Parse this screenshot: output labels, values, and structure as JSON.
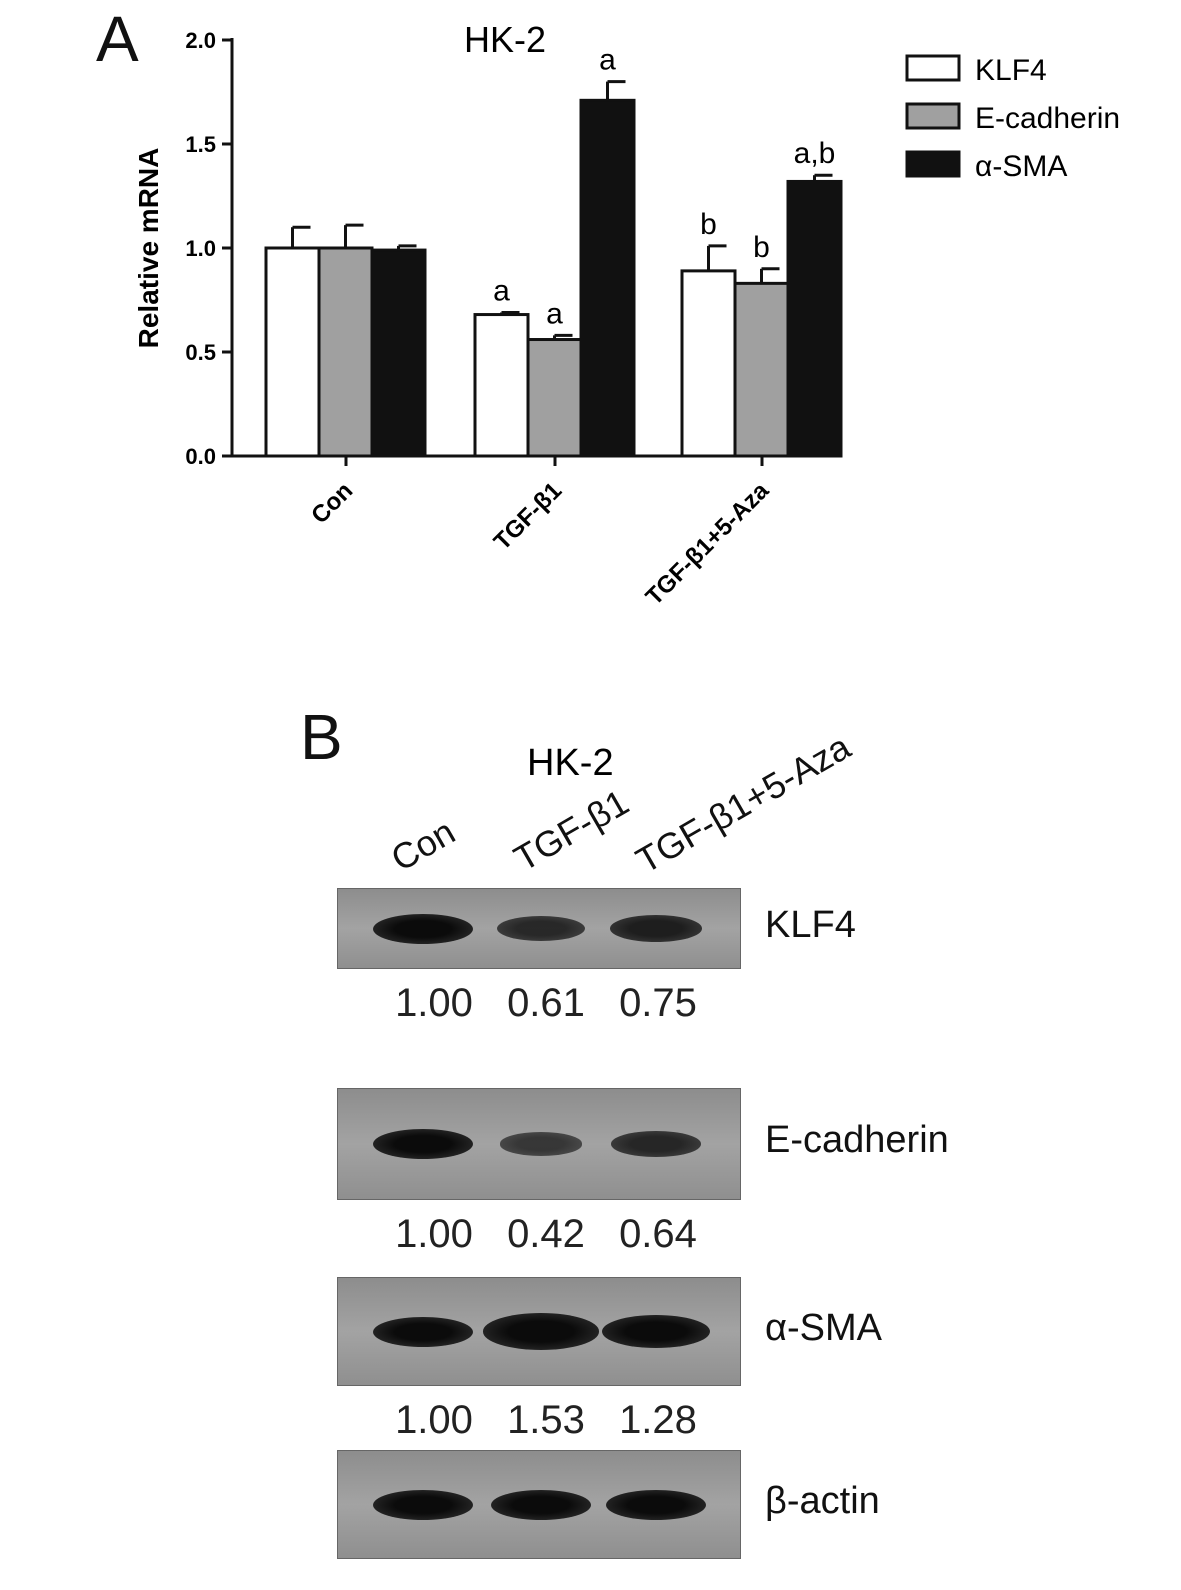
{
  "panel_a": {
    "letter": "A"
  },
  "panel_b": {
    "letter": "B",
    "title": "HK-2",
    "lanes": [
      "Con",
      "TGF-β1",
      "TGF-β1+5-Aza"
    ],
    "blots": [
      {
        "label": "KLF4",
        "values": [
          "1.00",
          "0.61",
          "0.75"
        ],
        "band_intensity": [
          1.0,
          0.61,
          0.75
        ]
      },
      {
        "label": "E-cadherin",
        "values": [
          "1.00",
          "0.42",
          "0.64"
        ],
        "band_intensity": [
          1.0,
          0.42,
          0.64
        ]
      },
      {
        "label": "α-SMA",
        "values": [
          "1.00",
          "1.53",
          "1.28"
        ],
        "band_intensity": [
          1.0,
          1.53,
          1.28
        ]
      },
      {
        "label": "β-actin",
        "values": [],
        "band_intensity": [
          1.0,
          1.0,
          1.0
        ]
      }
    ]
  },
  "chart_data": {
    "type": "bar",
    "title": "HK-2",
    "ylabel": "Relative mRNA",
    "xlabel": "",
    "ylim": [
      0,
      2.0
    ],
    "yticks": [
      "0.0",
      "0.5",
      "1.0",
      "1.5",
      "2.0"
    ],
    "categories": [
      "Con",
      "TGF-β1",
      "TGF-β1+5-Aza"
    ],
    "legend_position": "top-right",
    "series": [
      {
        "name": "KLF4",
        "color": "#ffffff",
        "values": [
          1.0,
          0.68,
          0.89
        ],
        "errors": [
          0.1,
          0.01,
          0.12
        ],
        "annotations": [
          "",
          "a",
          "b"
        ]
      },
      {
        "name": "E-cadherin",
        "color": "#a0a0a0",
        "values": [
          1.0,
          0.56,
          0.83
        ],
        "errors": [
          0.11,
          0.02,
          0.07
        ],
        "annotations": [
          "",
          "a",
          "b"
        ]
      },
      {
        "name": "α-SMA",
        "color": "#111111",
        "values": [
          0.99,
          1.71,
          1.32
        ],
        "errors": [
          0.02,
          0.09,
          0.03
        ],
        "annotations": [
          "",
          "a",
          "a,b"
        ]
      }
    ]
  }
}
